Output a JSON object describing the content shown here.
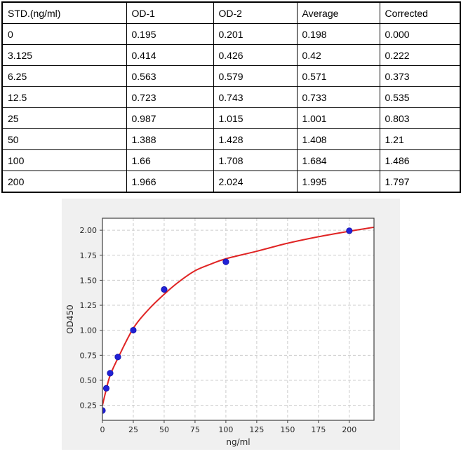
{
  "table": {
    "columns": [
      "STD.(ng/ml)",
      "OD-1",
      "OD-2",
      "Average",
      "Corrected"
    ],
    "rows": [
      [
        "0",
        "0.195",
        "0.201",
        "0.198",
        "0.000"
      ],
      [
        "3.125",
        "0.414",
        "0.426",
        "0.42",
        "0.222"
      ],
      [
        "6.25",
        "0.563",
        "0.579",
        "0.571",
        "0.373"
      ],
      [
        "12.5",
        "0.723",
        "0.743",
        "0.733",
        "0.535"
      ],
      [
        "25",
        "0.987",
        "1.015",
        "1.001",
        "0.803"
      ],
      [
        "50",
        "1.388",
        "1.428",
        "1.408",
        "1.21"
      ],
      [
        "100",
        "1.66",
        "1.708",
        "1.684",
        "1.486"
      ],
      [
        "200",
        "1.966",
        "2.024",
        "1.995",
        "1.797"
      ]
    ]
  },
  "chart_data": {
    "type": "scatter",
    "title": "",
    "xlabel": "ng/ml",
    "ylabel": "OD450",
    "xlim": [
      0,
      220
    ],
    "ylim": [
      0.1,
      2.12
    ],
    "grid": true,
    "x_ticks": {
      "values": [
        0,
        25,
        50,
        75,
        100,
        125,
        150,
        175,
        200
      ],
      "labels": [
        "0",
        "25",
        "50",
        "75",
        "100",
        "125",
        "150",
        "175",
        "200"
      ]
    },
    "y_ticks": {
      "values": [
        0.25,
        0.5,
        0.75,
        1.0,
        1.25,
        1.5,
        1.75,
        2.0
      ],
      "labels": [
        "0.25",
        "0.50",
        "0.75",
        "1.00",
        "1.25",
        "1.50",
        "1.75",
        "2.00"
      ]
    },
    "series": [
      {
        "name": "standards-points",
        "type": "scatter",
        "x": [
          0,
          3.125,
          6.25,
          12.5,
          25,
          50,
          100,
          200
        ],
        "y": [
          0.198,
          0.42,
          0.571,
          0.733,
          1.001,
          1.408,
          1.684,
          1.995
        ]
      },
      {
        "name": "fitted-curve",
        "type": "line",
        "x": [
          0,
          3.125,
          6.25,
          12.5,
          25,
          37.5,
          50,
          62.5,
          75,
          87.5,
          100,
          125,
          150,
          175,
          200,
          220
        ],
        "y": [
          0.25,
          0.41,
          0.55,
          0.72,
          1.02,
          1.21,
          1.36,
          1.49,
          1.595,
          1.66,
          1.715,
          1.79,
          1.87,
          1.935,
          1.99,
          2.03
        ]
      }
    ],
    "colors": {
      "figure_background": "#f0f0f0",
      "plot_background": "#ffffff",
      "grid": "#cccccc",
      "spine": "#3f3f3f",
      "tick_text": "#262626",
      "point": "#2121d6",
      "point_edge": "#1313a8",
      "curve": "#e02424"
    }
  }
}
